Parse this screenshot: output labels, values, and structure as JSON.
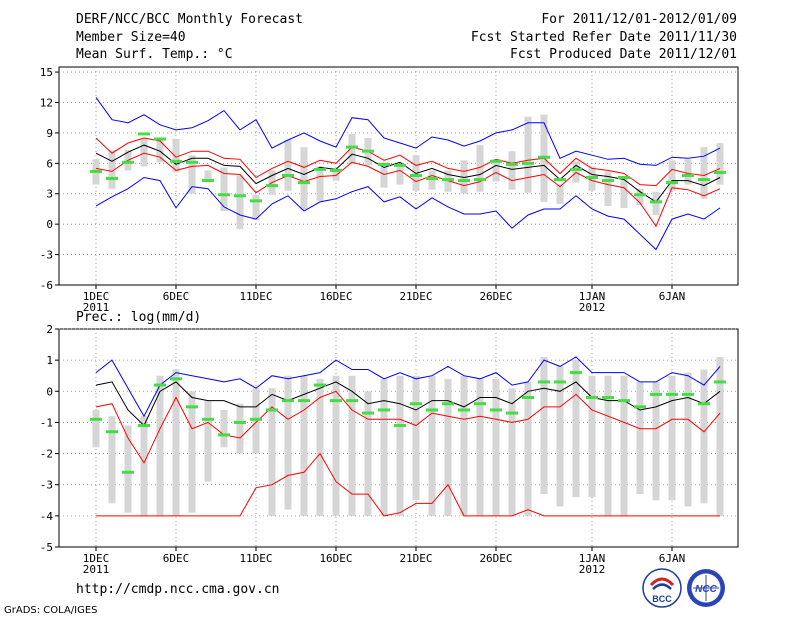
{
  "header": {
    "title": "DERF/NCC/BCC Monthly Forecast",
    "member_size": "Member Size=40",
    "variable": "Mean Surf. Temp.: °C",
    "forecast_period": "For 2011/12/01-2012/01/09",
    "started_date": "Fcst Started Refer Date 2011/11/30",
    "produced_date": "Fcst Produced Date 2011/12/01"
  },
  "footer": {
    "url": "http://cmdp.ncc.cma.gov.cn",
    "credit": "GrADS: COLA/IGES",
    "logo_bcc": "BCC",
    "logo_ncc": "NCC"
  },
  "colors": {
    "ensemble_mean": "#000000",
    "inner_band": "#ff0000",
    "outer_band": "#0000ff",
    "member_range_bar": "#d6d6d6",
    "median_marker": "#44dd44",
    "grid": "#888888"
  },
  "chart_data": [
    {
      "type": "line",
      "title": "Mean Surf. Temp.: °C",
      "x": [
        1,
        2,
        3,
        4,
        5,
        6,
        7,
        8,
        9,
        10,
        11,
        12,
        13,
        14,
        15,
        16,
        17,
        18,
        19,
        20,
        21,
        22,
        23,
        24,
        25,
        26,
        27,
        28,
        29,
        30,
        31,
        32,
        33,
        34,
        35,
        36,
        37,
        38,
        39,
        40
      ],
      "x_tick_labels": [
        {
          "x": 1,
          "label": "1DEC",
          "sub": "2011"
        },
        {
          "x": 6,
          "label": "6DEC",
          "sub": ""
        },
        {
          "x": 11,
          "label": "11DEC",
          "sub": ""
        },
        {
          "x": 16,
          "label": "16DEC",
          "sub": ""
        },
        {
          "x": 21,
          "label": "21DEC",
          "sub": ""
        },
        {
          "x": 26,
          "label": "26DEC",
          "sub": ""
        },
        {
          "x": 32,
          "label": "1JAN",
          "sub": "2012"
        },
        {
          "x": 37,
          "label": "6JAN",
          "sub": ""
        }
      ],
      "ylim": [
        -6,
        15.5
      ],
      "y_ticks": [
        -6,
        -3,
        0,
        3,
        6,
        9,
        12,
        15
      ],
      "series": [
        {
          "name": "outer-upper",
          "color": "#0000ff",
          "values": [
            12.5,
            10.3,
            10,
            10.8,
            9.8,
            9.3,
            9.5,
            10.2,
            11.2,
            9.3,
            10.3,
            7.5,
            8.3,
            9,
            8.2,
            7.6,
            10.5,
            10.3,
            8.5,
            8,
            7.5,
            8.6,
            8.3,
            7.7,
            8.2,
            9,
            9.3,
            10,
            10,
            6.5,
            7.2,
            6.8,
            6.4,
            6.5,
            5.9,
            5.8,
            6.6,
            6.5,
            6.7,
            7.5
          ]
        },
        {
          "name": "inner-upper",
          "color": "#ff0000",
          "values": [
            8.5,
            7,
            8,
            8.5,
            8.2,
            6.6,
            7.2,
            7.2,
            6.5,
            6.4,
            4.6,
            5.5,
            6.2,
            5.6,
            6.3,
            6,
            7.6,
            7.2,
            6.3,
            6.8,
            5.8,
            6.2,
            5.5,
            5.2,
            5.6,
            6.4,
            6,
            6.3,
            6.5,
            5,
            6.5,
            5.5,
            5.3,
            5,
            3.9,
            3.8,
            5.4,
            5,
            4.8,
            5.5
          ]
        },
        {
          "name": "ensemble-mean",
          "color": "#000000",
          "values": [
            7,
            6.2,
            7.1,
            7.8,
            7.2,
            5.9,
            6.5,
            6.5,
            5.8,
            5.7,
            4,
            4.8,
            5.5,
            4.9,
            5.6,
            5.4,
            6.9,
            6.5,
            5.6,
            6.1,
            5,
            5.5,
            4.9,
            4.6,
            4.9,
            5.8,
            5.4,
            5.6,
            5.8,
            4.4,
            5.8,
            4.9,
            4.7,
            4.4,
            3.2,
            2.2,
            4.3,
            4.3,
            3.8,
            4.6
          ]
        },
        {
          "name": "inner-lower",
          "color": "#ff0000",
          "values": [
            5.5,
            5.2,
            6.3,
            7,
            6.6,
            5.3,
            5.7,
            5.8,
            5,
            4.9,
            3.1,
            4.1,
            4.8,
            4.2,
            4.7,
            4.8,
            6.1,
            5.7,
            4.9,
            5.3,
            4.2,
            4.8,
            4.3,
            3.8,
            4.2,
            5.1,
            4.3,
            4.6,
            4.9,
            3.7,
            5.1,
            4.3,
            3.9,
            3.6,
            2.1,
            -0.2,
            3.6,
            3.4,
            2.8,
            3.5
          ]
        },
        {
          "name": "outer-lower",
          "color": "#0000ff",
          "values": [
            1.8,
            2.7,
            3.5,
            4.6,
            4.3,
            1.6,
            3.7,
            3.5,
            1.7,
            0.9,
            0.5,
            2,
            2.8,
            1.3,
            2.2,
            2.5,
            3.2,
            3.7,
            2.2,
            2.7,
            1.5,
            2.6,
            1.7,
            1,
            1,
            1.3,
            -0.4,
            0.9,
            1.5,
            1.5,
            2.8,
            1.5,
            0.8,
            0.5,
            -1,
            -2.5,
            0.5,
            1,
            0.5,
            1.6
          ]
        }
      ],
      "range_bars": {
        "low": [
          3.9,
          3.5,
          5.3,
          5.7,
          6.1,
          5.1,
          3,
          4.4,
          1.3,
          -0.5,
          0.4,
          2.9,
          3.3,
          1.4,
          2.3,
          4.3,
          5.9,
          5.8,
          3.6,
          3.9,
          3.3,
          3.4,
          3.2,
          3,
          3.2,
          4.2,
          3.4,
          3.1,
          2.2,
          2,
          4.1,
          3.3,
          1.8,
          1.6,
          1.9,
          0.9,
          3.3,
          3.9,
          2.5,
          3.9
        ],
        "high": [
          6.4,
          7.3,
          7.3,
          8.4,
          8.5,
          8.4,
          6.8,
          5.3,
          5.6,
          4.8,
          2.9,
          5.3,
          8.3,
          7.6,
          5.7,
          5.4,
          8.9,
          8.5,
          5.6,
          5.7,
          6.8,
          5.3,
          5.3,
          6.3,
          7.8,
          6.4,
          7.2,
          10.6,
          10.8,
          3.9,
          6.2,
          5.7,
          5.2,
          4.7,
          3.5,
          3.2,
          6.3,
          6.4,
          7.6,
          8
        ]
      },
      "median": [
        5.2,
        4.5,
        6.1,
        8.9,
        8.4,
        6.2,
        6.1,
        4.3,
        2.9,
        2.8,
        2.3,
        3.8,
        4.8,
        4.1,
        5.4,
        5.3,
        7.6,
        7.2,
        5.9,
        5.8,
        4.8,
        4.5,
        4.4,
        4.3,
        4.4,
        6.2,
        5.9,
        6,
        6.6,
        4.4,
        5.4,
        4.6,
        4.3,
        4.6,
        2.9,
        2.2,
        4.1,
        4.8,
        4.4,
        5.1
      ]
    },
    {
      "type": "line",
      "title": "Prec.: log(mm/d)",
      "x": [
        1,
        2,
        3,
        4,
        5,
        6,
        7,
        8,
        9,
        10,
        11,
        12,
        13,
        14,
        15,
        16,
        17,
        18,
        19,
        20,
        21,
        22,
        23,
        24,
        25,
        26,
        27,
        28,
        29,
        30,
        31,
        32,
        33,
        34,
        35,
        36,
        37,
        38,
        39,
        40
      ],
      "x_tick_labels": [
        {
          "x": 1,
          "label": "1DEC",
          "sub": "2011"
        },
        {
          "x": 6,
          "label": "6DEC",
          "sub": ""
        },
        {
          "x": 11,
          "label": "11DEC",
          "sub": ""
        },
        {
          "x": 16,
          "label": "16DEC",
          "sub": ""
        },
        {
          "x": 21,
          "label": "21DEC",
          "sub": ""
        },
        {
          "x": 26,
          "label": "26DEC",
          "sub": ""
        },
        {
          "x": 32,
          "label": "1JAN",
          "sub": "2012"
        },
        {
          "x": 37,
          "label": "6JAN",
          "sub": ""
        }
      ],
      "ylim": [
        -5,
        2
      ],
      "y_ticks": [
        -5,
        -4,
        -3,
        -2,
        -1,
        0,
        1,
        2
      ],
      "series": [
        {
          "name": "outer-upper",
          "color": "#0000ff",
          "values": [
            0.6,
            1,
            0.1,
            -0.8,
            0.2,
            0.6,
            0.5,
            0.4,
            0.3,
            0.4,
            0.1,
            0.5,
            0.4,
            0.5,
            0.6,
            1,
            0.7,
            0.7,
            0.4,
            0.6,
            0.4,
            0.5,
            0.8,
            0.5,
            0.4,
            0.6,
            0.2,
            0.3,
            1,
            0.8,
            1.1,
            0.6,
            0.6,
            0.6,
            0.3,
            0.3,
            0.6,
            0.5,
            0.2,
            0.8
          ]
        },
        {
          "name": "ensemble-mean",
          "color": "#000000",
          "values": [
            0.2,
            0.3,
            -0.6,
            -1.1,
            0,
            0.3,
            -0.2,
            -0.3,
            -0.3,
            -0.5,
            -0.5,
            -0.1,
            -0.3,
            -0.1,
            0.1,
            0.3,
            0,
            -0.4,
            -0.3,
            -0.4,
            -0.6,
            -0.3,
            -0.3,
            -0.5,
            -0.2,
            -0.2,
            -0.4,
            0,
            0.1,
            0,
            0.3,
            -0.2,
            -0.3,
            -0.3,
            -0.6,
            -0.5,
            -0.3,
            -0.2,
            -0.4,
            0
          ]
        },
        {
          "name": "inner-lower",
          "color": "#ff0000",
          "values": [
            -0.5,
            -0.4,
            -1.5,
            -2.3,
            -1.2,
            -0.2,
            -1.2,
            -1,
            -1.4,
            -1.5,
            -1,
            -0.5,
            -0.9,
            -0.6,
            -0.2,
            0,
            -0.6,
            -0.9,
            -0.9,
            -0.9,
            -1.1,
            -0.7,
            -0.8,
            -0.9,
            -0.8,
            -0.9,
            -1,
            -0.9,
            -0.5,
            -0.5,
            -0.1,
            -0.6,
            -0.8,
            -1,
            -1.2,
            -1.2,
            -0.9,
            -0.9,
            -1.3,
            -0.7
          ]
        },
        {
          "name": "outer-lower",
          "color": "#ff0000",
          "values": [
            -4,
            -4,
            -4,
            -4,
            -4,
            -4,
            -4,
            -4,
            -4,
            -4,
            -3.1,
            -3,
            -2.7,
            -2.6,
            -2,
            -2.9,
            -3.3,
            -3.3,
            -4,
            -3.9,
            -3.6,
            -3.6,
            -3,
            -4,
            -4,
            -4,
            -4,
            -3.8,
            -4,
            -4,
            -4,
            -4,
            -4,
            -4,
            -4,
            -4,
            -4,
            -4,
            -4,
            -4
          ]
        }
      ],
      "range_bars": {
        "low": [
          -1.8,
          -3.6,
          -3.9,
          -4,
          -4,
          -4,
          -3.9,
          -2.9,
          -1.8,
          -2,
          -2,
          -4,
          -3.8,
          -4,
          -4,
          -4,
          -4,
          -4,
          -4,
          -4,
          -3.5,
          -4,
          -4,
          -4,
          -4,
          -4,
          -4,
          -4,
          -3.3,
          -3.7,
          -3.4,
          -3.4,
          -4,
          -4,
          -3.3,
          -3.5,
          -3.5,
          -3.7,
          -3.6,
          -4
        ],
        "high": [
          -0.6,
          -0.8,
          -1.1,
          -0.8,
          0.5,
          0.7,
          0,
          -0.3,
          -0.6,
          -0.4,
          0.1,
          0.1,
          0.5,
          0.5,
          0.4,
          0.5,
          0.5,
          0,
          0.4,
          0.5,
          0.5,
          0.5,
          0.4,
          0.5,
          0.4,
          0.4,
          0.1,
          0.3,
          1.1,
          0.8,
          1,
          0.5,
          0.5,
          0.5,
          0.3,
          0.3,
          0.5,
          0.6,
          0.7,
          1.1
        ]
      },
      "median": [
        -0.9,
        -1.3,
        -2.6,
        -1.1,
        0.2,
        0.4,
        -0.5,
        -0.9,
        -1.4,
        -1,
        -0.9,
        -0.6,
        -0.3,
        -0.3,
        0.2,
        -0.3,
        -0.3,
        -0.7,
        -0.6,
        -1.1,
        -0.4,
        -0.6,
        -0.4,
        -0.6,
        -0.4,
        -0.6,
        -0.7,
        -0.2,
        0.3,
        0.3,
        0.6,
        -0.2,
        -0.2,
        -0.3,
        -0.5,
        -0.1,
        -0.1,
        -0.1,
        -0.4,
        0.3
      ]
    }
  ]
}
